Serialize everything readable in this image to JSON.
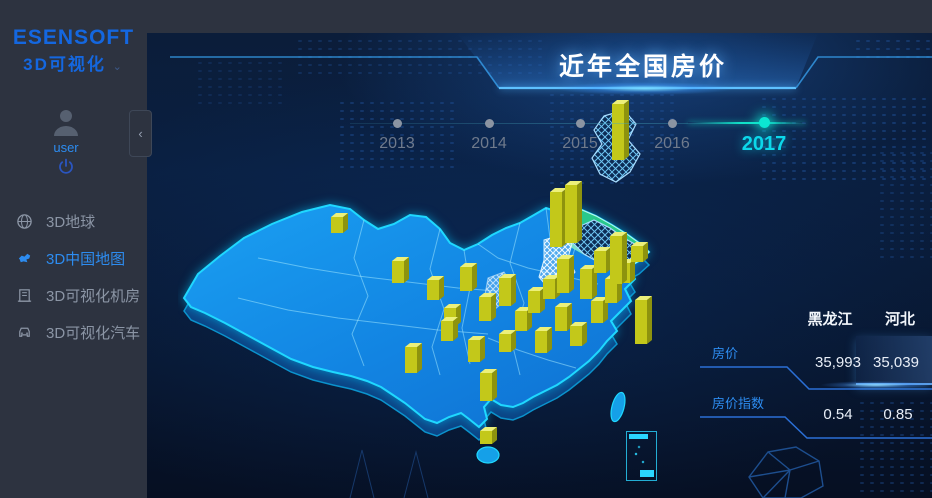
{
  "app": {
    "logo": "ESENSOFT",
    "logo_sub": "3D可视化"
  },
  "sidebar": {
    "user": {
      "name": "user"
    },
    "menu": [
      {
        "label": "3D地球",
        "icon": "globe-icon",
        "active": false
      },
      {
        "label": "3D中国地图",
        "icon": "china-map-icon",
        "active": true
      },
      {
        "label": "3D可视化机房",
        "icon": "server-room-icon",
        "active": false
      },
      {
        "label": "3D可视化汽车",
        "icon": "car-icon",
        "active": false
      }
    ]
  },
  "header": {
    "title": "近年全国房价"
  },
  "timeline": {
    "years": [
      "2013",
      "2014",
      "2015",
      "2016",
      "2017"
    ],
    "active_year": "2017"
  },
  "info_panel": {
    "columns": [
      "黑龙江",
      "河北"
    ],
    "rows": [
      {
        "label": "房价",
        "values": [
          "35,993",
          "35,039"
        ]
      },
      {
        "label": "房价指数",
        "values": [
          "0.54",
          "0.85"
        ]
      }
    ],
    "highlighted_column": "河北"
  },
  "map": {
    "type": "3d-china-map",
    "selected_provinces": [
      "黑龙江",
      "河北"
    ],
    "bars": [
      [
        337,
        233,
        16
      ],
      [
        398,
        283,
        22
      ],
      [
        433,
        300,
        20
      ],
      [
        466,
        291,
        24
      ],
      [
        450,
        326,
        18
      ],
      [
        411,
        373,
        26
      ],
      [
        447,
        341,
        20
      ],
      [
        474,
        362,
        22
      ],
      [
        486,
        401,
        28
      ],
      [
        505,
        352,
        18
      ],
      [
        505,
        306,
        28
      ],
      [
        485,
        321,
        24
      ],
      [
        521,
        331,
        20
      ],
      [
        534,
        313,
        22
      ],
      [
        549,
        299,
        20
      ],
      [
        556,
        247,
        55
      ],
      [
        571,
        243,
        58
      ],
      [
        563,
        293,
        34
      ],
      [
        586,
        299,
        30
      ],
      [
        600,
        273,
        22
      ],
      [
        561,
        331,
        24
      ],
      [
        541,
        353,
        22
      ],
      [
        576,
        346,
        20
      ],
      [
        597,
        323,
        22
      ],
      [
        611,
        303,
        24
      ],
      [
        624,
        283,
        20
      ],
      [
        637,
        262,
        16
      ],
      [
        618,
        160,
        56
      ],
      [
        616,
        284,
        48
      ],
      [
        641,
        344,
        44
      ],
      [
        486,
        444,
        13
      ]
    ]
  },
  "colors": {
    "accent_blue": "#2d8cf0",
    "active_cyan": "#0cd8ea",
    "bar_yellow": "#c3c81a",
    "map_blue": "#1491ee",
    "map_green": "#28c88c",
    "sidebar_bg": "#2d3340"
  }
}
